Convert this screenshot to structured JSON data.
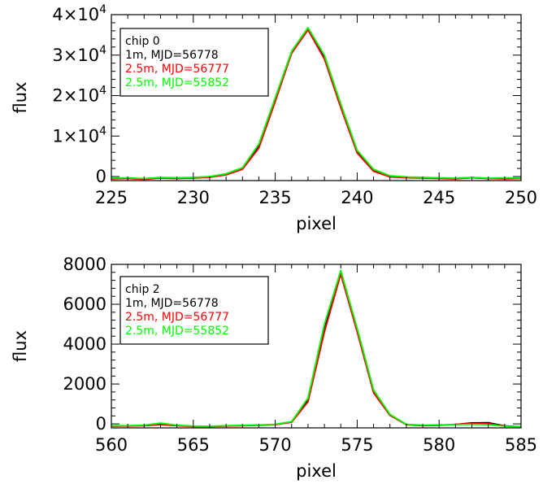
{
  "chart_data": [
    {
      "type": "line",
      "xlabel": "pixel",
      "ylabel": "flux",
      "xlim": [
        225,
        250
      ],
      "ylim": [
        -1000,
        40000
      ],
      "xticks": [
        225,
        230,
        235,
        240,
        245,
        250
      ],
      "xtick_labels": [
        "225",
        "230",
        "235",
        "240",
        "245",
        "250"
      ],
      "yticks": [
        0,
        10000,
        20000,
        30000,
        40000
      ],
      "ytick_labels": [
        {
          "mantissa": "0",
          "exp": ""
        },
        {
          "mantissa": "1×10",
          "exp": "4"
        },
        {
          "mantissa": "2×10",
          "exp": "4"
        },
        {
          "mantissa": "3×10",
          "exp": "4"
        },
        {
          "mantissa": "4×10",
          "exp": "4"
        }
      ],
      "legend_title": "chip 0",
      "legend_position": "top-left",
      "series": [
        {
          "name": "1m, MJD=56778",
          "color": "#000000",
          "x": [
            225,
            226,
            227,
            228,
            229,
            230,
            231,
            232,
            233,
            234,
            235,
            236,
            237,
            238,
            239,
            240,
            241,
            242,
            243,
            244,
            245,
            246,
            247,
            248,
            249,
            250
          ],
          "values": [
            -500,
            -400,
            -600,
            -300,
            -400,
            -300,
            -100,
            500,
            2000,
            7500,
            19000,
            30500,
            36500,
            29500,
            17500,
            6000,
            1500,
            0,
            -200,
            -300,
            -400,
            -500,
            -300,
            -500,
            -400,
            -500
          ]
        },
        {
          "name": "2.5m, MJD=56777",
          "color": "#ff0000",
          "x": [
            225,
            226,
            227,
            228,
            229,
            230,
            231,
            232,
            233,
            234,
            235,
            236,
            237,
            238,
            239,
            240,
            241,
            242,
            243,
            244,
            245,
            246,
            247,
            248,
            249,
            250
          ],
          "values": [
            -600,
            -500,
            -700,
            -400,
            -500,
            -400,
            -200,
            400,
            1800,
            7000,
            18500,
            30500,
            36200,
            29000,
            17000,
            5800,
            1300,
            -100,
            -300,
            -400,
            -500,
            -600,
            -300,
            -500,
            -600,
            -500
          ]
        },
        {
          "name": "2.5m, MJD=55852",
          "color": "#00ff00",
          "x": [
            225,
            226,
            227,
            228,
            229,
            230,
            231,
            232,
            233,
            234,
            235,
            236,
            237,
            238,
            239,
            240,
            241,
            242,
            243,
            244,
            245,
            246,
            247,
            248,
            249,
            250
          ],
          "values": [
            -400,
            -300,
            -500,
            -200,
            -300,
            -200,
            0,
            700,
            2200,
            8000,
            19500,
            31000,
            36800,
            30000,
            18000,
            6500,
            1800,
            200,
            -100,
            -200,
            -300,
            -400,
            -200,
            -400,
            -300,
            -400
          ]
        }
      ]
    },
    {
      "type": "line",
      "xlabel": "pixel",
      "ylabel": "flux",
      "xlim": [
        560,
        585
      ],
      "ylim": [
        -200,
        8000
      ],
      "xticks": [
        560,
        565,
        570,
        575,
        580,
        585
      ],
      "xtick_labels": [
        "560",
        "565",
        "570",
        "575",
        "580",
        "585"
      ],
      "yticks": [
        0,
        2000,
        4000,
        6000,
        8000
      ],
      "ytick_labels": [
        {
          "mantissa": "0",
          "exp": ""
        },
        {
          "mantissa": "2000",
          "exp": ""
        },
        {
          "mantissa": "4000",
          "exp": ""
        },
        {
          "mantissa": "6000",
          "exp": ""
        },
        {
          "mantissa": "8000",
          "exp": ""
        }
      ],
      "legend_title": "chip 2",
      "legend_position": "top-left",
      "series": [
        {
          "name": "1m, MJD=56778",
          "color": "#000000",
          "x": [
            560,
            561,
            562,
            563,
            564,
            565,
            566,
            567,
            568,
            569,
            570,
            571,
            572,
            573,
            574,
            575,
            576,
            577,
            578,
            579,
            580,
            581,
            582,
            583,
            584,
            585
          ],
          "values": [
            -100,
            -100,
            -80,
            -20,
            -80,
            -120,
            -130,
            -100,
            -80,
            -60,
            -30,
            100,
            1200,
            4800,
            7600,
            4700,
            1600,
            450,
            -30,
            -80,
            -60,
            -30,
            50,
            60,
            -100,
            -150
          ]
        },
        {
          "name": "2.5m, MJD=56777",
          "color": "#ff0000",
          "x": [
            560,
            561,
            562,
            563,
            564,
            565,
            566,
            567,
            568,
            569,
            570,
            571,
            572,
            573,
            574,
            575,
            576,
            577,
            578,
            579,
            580,
            581,
            582,
            583,
            584,
            585
          ],
          "values": [
            -120,
            -110,
            -90,
            -40,
            -90,
            -130,
            -140,
            -110,
            -90,
            -70,
            -40,
            80,
            1100,
            4600,
            7500,
            4600,
            1550,
            430,
            -40,
            -90,
            -70,
            -20,
            20,
            10,
            -110,
            -140
          ]
        },
        {
          "name": "2.5m, MJD=55852",
          "color": "#00ff00",
          "x": [
            560,
            561,
            562,
            563,
            564,
            565,
            566,
            567,
            568,
            569,
            570,
            571,
            572,
            573,
            574,
            575,
            576,
            577,
            578,
            579,
            580,
            581,
            582,
            583,
            584,
            585
          ],
          "values": [
            -90,
            -90,
            -60,
            40,
            -60,
            -110,
            -120,
            -90,
            -70,
            -50,
            -20,
            120,
            1300,
            5000,
            7700,
            4800,
            1700,
            480,
            -20,
            -60,
            -40,
            -40,
            -20,
            -40,
            -120,
            -150
          ]
        }
      ]
    }
  ]
}
